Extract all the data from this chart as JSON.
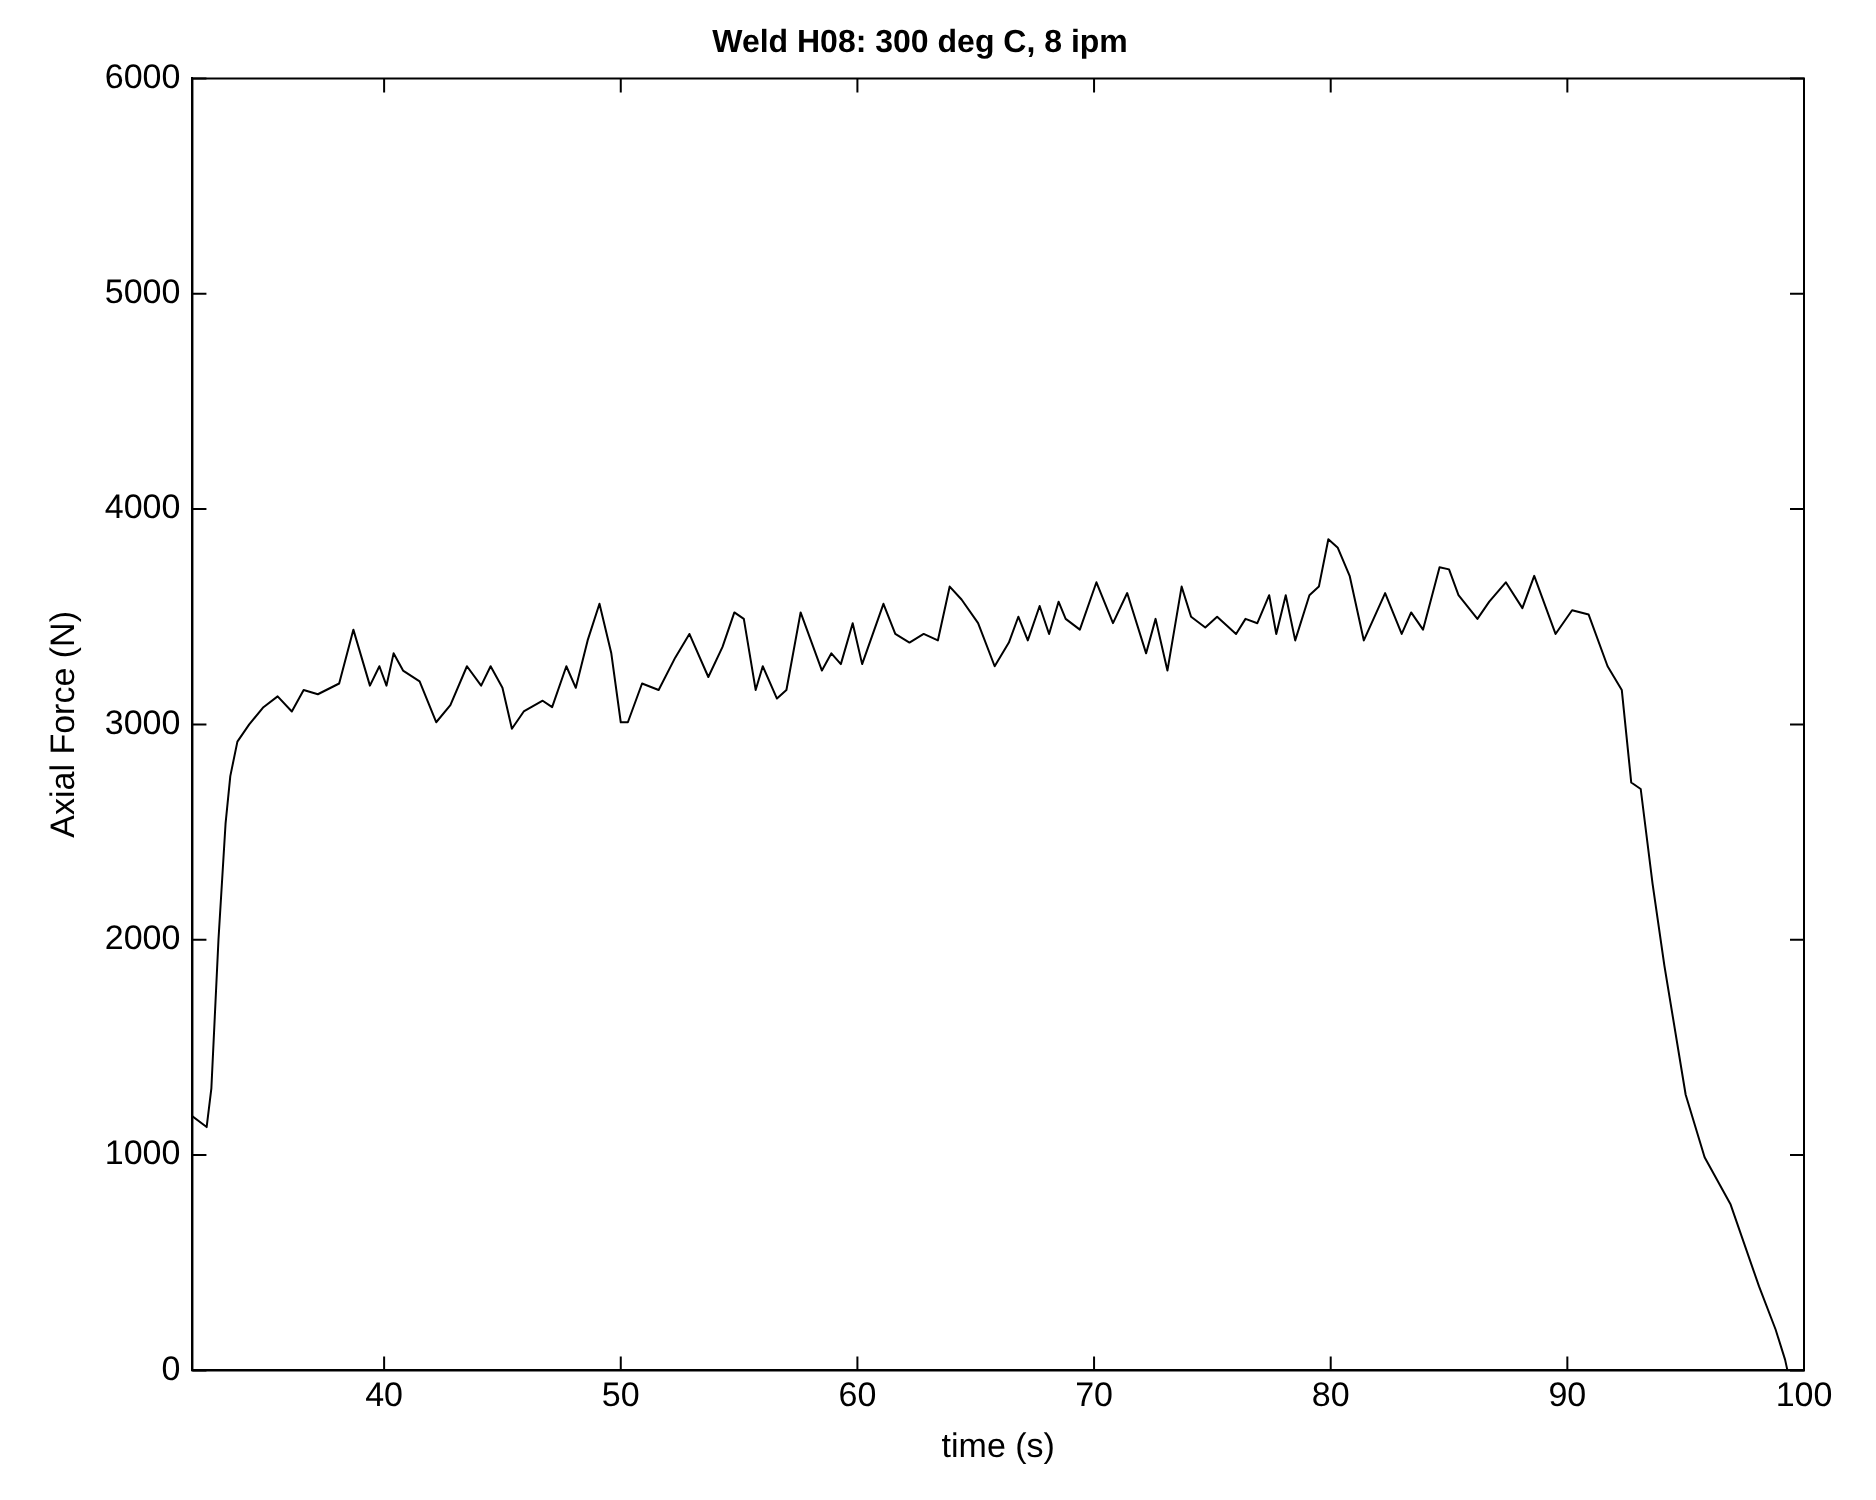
{
  "chart_data": {
    "type": "line",
    "title": "Weld H08: 300 deg C, 8 ipm",
    "xlabel": "time (s)",
    "ylabel": "Axial Force (N)",
    "series": [
      {
        "color": "#000000",
        "x": [
          31.9,
          32.5,
          32.7,
          33.0,
          33.3,
          33.5,
          33.8,
          34.3,
          34.9,
          35.5,
          36.1,
          36.6,
          37.2,
          38.1,
          38.7,
          39.4,
          39.8,
          40.1,
          40.4,
          40.8,
          41.5,
          42.2,
          42.8,
          43.5,
          44.1,
          44.5,
          45.0,
          45.4,
          45.9,
          46.7,
          47.1,
          47.7,
          48.1,
          48.6,
          49.1,
          49.6,
          50.0,
          50.3,
          50.9,
          51.6,
          52.3,
          52.9,
          53.7,
          54.3,
          54.8,
          55.2,
          55.7,
          56.0,
          56.6,
          57.0,
          57.6,
          58.5,
          58.9,
          59.3,
          59.8,
          60.2,
          61.1,
          61.6,
          62.2,
          62.8,
          63.4,
          63.9,
          64.4,
          65.1,
          65.8,
          66.4,
          66.8,
          67.2,
          67.7,
          68.1,
          68.5,
          68.8,
          69.4,
          70.1,
          70.8,
          71.4,
          72.2,
          72.6,
          73.1,
          73.7,
          74.1,
          74.7,
          75.2,
          76.0,
          76.4,
          76.9,
          77.4,
          77.7,
          78.1,
          78.5,
          79.1,
          79.5,
          79.9,
          80.3,
          80.8,
          81.4,
          82.3,
          83.0,
          83.4,
          83.9,
          84.6,
          85.0,
          85.4,
          86.2,
          86.7,
          87.4,
          88.1,
          88.6,
          89.5,
          90.2,
          90.9,
          91.7,
          92.3,
          92.7,
          93.1,
          93.6,
          94.1,
          95.0,
          95.8,
          96.9,
          98.1,
          98.8,
          99.2,
          99.3
        ],
        "values": [
          1180,
          1130,
          1310,
          2000,
          2540,
          2760,
          2920,
          3000,
          3080,
          3130,
          3060,
          3160,
          3140,
          3190,
          3440,
          3180,
          3270,
          3180,
          3330,
          3250,
          3200,
          3010,
          3090,
          3270,
          3180,
          3270,
          3170,
          2980,
          3060,
          3110,
          3080,
          3270,
          3170,
          3390,
          3560,
          3330,
          3010,
          3010,
          3190,
          3160,
          3310,
          3420,
          3220,
          3360,
          3520,
          3490,
          3160,
          3270,
          3120,
          3160,
          3520,
          3250,
          3330,
          3280,
          3470,
          3280,
          3560,
          3420,
          3380,
          3420,
          3390,
          3640,
          3580,
          3470,
          3270,
          3380,
          3500,
          3390,
          3550,
          3420,
          3570,
          3490,
          3440,
          3660,
          3470,
          3610,
          3330,
          3490,
          3250,
          3640,
          3500,
          3450,
          3500,
          3420,
          3490,
          3470,
          3600,
          3420,
          3600,
          3390,
          3600,
          3640,
          3860,
          3820,
          3690,
          3390,
          3610,
          3420,
          3520,
          3440,
          3730,
          3720,
          3600,
          3490,
          3570,
          3660,
          3540,
          3690,
          3420,
          3530,
          3510,
          3270,
          3160,
          2730,
          2700,
          2260,
          1880,
          1280,
          990,
          770,
          390,
          190,
          50,
          0
        ]
      }
    ],
    "xlim": [
      31.9,
      100
    ],
    "xticks": [
      40,
      50,
      60,
      70,
      80,
      90,
      100
    ],
    "ylim": [
      0,
      6000
    ],
    "yticks": [
      0,
      1000,
      2000,
      3000,
      4000,
      5000,
      6000
    ],
    "grid": false,
    "legend": false,
    "marker": "none",
    "line_style": "solid"
  }
}
